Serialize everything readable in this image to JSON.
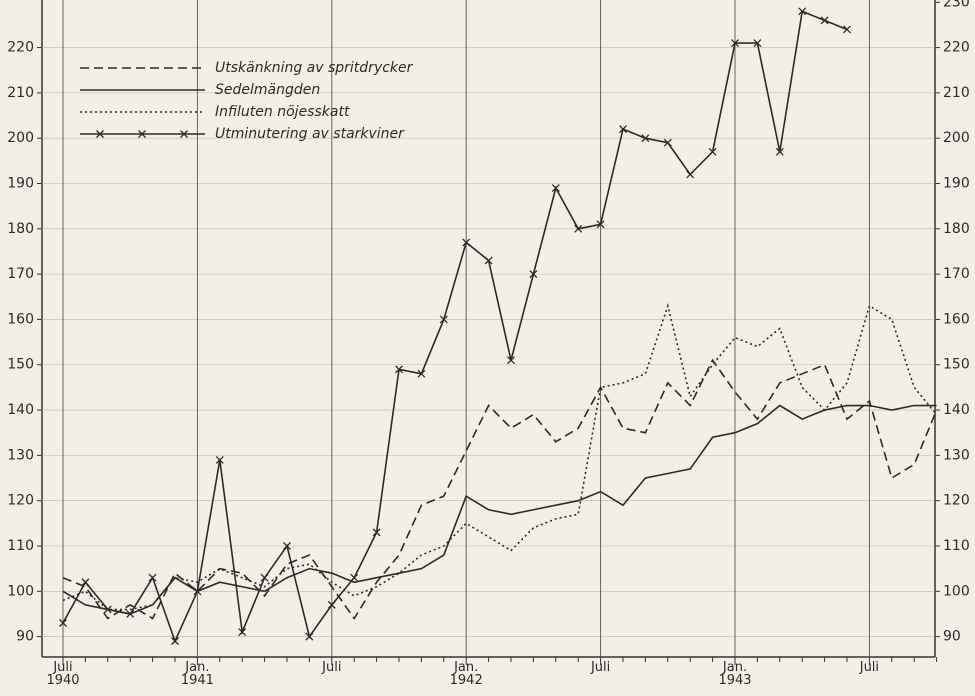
{
  "chart_data": {
    "type": "line",
    "categories": [
      "Juli\n1940",
      null,
      null,
      null,
      null,
      null,
      "Jan.\n1941",
      null,
      null,
      null,
      null,
      null,
      "Juli",
      null,
      null,
      null,
      null,
      null,
      "Jan.\n1942",
      null,
      null,
      null,
      null,
      null,
      "Juli",
      null,
      null,
      null,
      null,
      null,
      "Jan.\n1943",
      null,
      null,
      null,
      null,
      null,
      "Juli",
      null,
      null,
      null
    ],
    "series": [
      {
        "name": "Utskänkning av spritdrycker",
        "color": "#2b2b2b",
        "style": "dashed",
        "values": [
          103,
          101,
          94,
          97,
          94,
          104,
          100,
          105,
          104,
          99,
          106,
          108,
          101,
          94,
          102,
          108,
          119,
          121,
          131,
          141,
          136,
          139,
          133,
          136,
          145,
          136,
          135,
          146,
          141,
          151,
          144,
          138,
          146,
          148,
          150,
          138,
          142,
          125,
          128,
          140
        ]
      },
      {
        "name": "Sedelmängden",
        "color": "#2b2b2b",
        "style": "solid",
        "values": [
          100,
          97,
          96,
          95,
          97,
          103,
          100,
          102,
          101,
          100,
          103,
          105,
          104,
          102,
          103,
          104,
          105,
          108,
          121,
          118,
          117,
          118,
          119,
          120,
          122,
          119,
          125,
          126,
          127,
          134,
          135,
          137,
          141,
          138,
          140,
          141,
          141,
          140,
          141,
          141
        ]
      },
      {
        "name": "Infiluten nöjesskatt",
        "color": "#2b2b2b",
        "style": "dotted",
        "values": [
          98,
          100,
          96,
          96,
          97,
          103,
          102,
          105,
          103,
          101,
          105,
          106,
          102,
          99,
          101,
          104,
          108,
          110,
          115,
          112,
          109,
          114,
          116,
          117,
          145,
          146,
          148,
          163,
          143,
          150,
          156,
          154,
          158,
          145,
          140,
          146,
          163,
          160,
          145,
          139
        ]
      },
      {
        "name": "Utminutering av starkviner",
        "color": "#2b2b2b",
        "style": "cross",
        "values": [
          93,
          102,
          96,
          95,
          103,
          89,
          100,
          129,
          91,
          103,
          110,
          90,
          97,
          103,
          113,
          149,
          148,
          160,
          177,
          173,
          151,
          170,
          189,
          180,
          181,
          202,
          200,
          199,
          192,
          197,
          221,
          221,
          197,
          228,
          226,
          224,
          null,
          null,
          null,
          null
        ]
      }
    ],
    "ylim": [
      85.5,
      230.5
    ],
    "yticks": [
      90,
      100,
      110,
      120,
      130,
      140,
      150,
      160,
      170,
      180,
      190,
      200,
      210,
      220
    ],
    "y2lim": [
      85.5,
      230.5
    ],
    "y2ticks": [
      90,
      100,
      110,
      120,
      130,
      140,
      150,
      160,
      170,
      180,
      190,
      200,
      210,
      220,
      230
    ],
    "grid": true,
    "legend": "upper left"
  }
}
